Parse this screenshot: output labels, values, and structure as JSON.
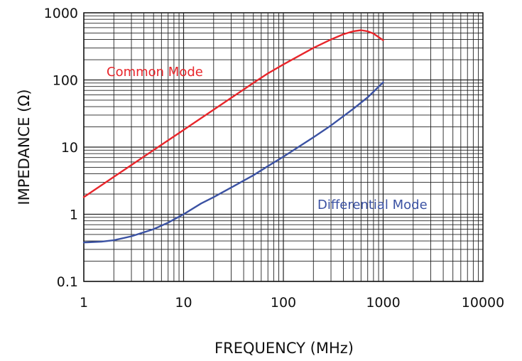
{
  "chart_data": {
    "type": "line",
    "x_scale": "log",
    "y_scale": "log",
    "xlim": [
      1,
      10000
    ],
    "ylim": [
      0.1,
      1000
    ],
    "grid": true,
    "xlabel": "FREQUENCY (MHz)",
    "ylabel": "IMPEDANCE (Ω)",
    "x_tick_labels": [
      "1",
      "10",
      "100",
      "1000",
      "10000"
    ],
    "y_tick_labels": [
      "0.1",
      "1",
      "10",
      "100",
      "1000"
    ],
    "series": [
      {
        "name": "Common Mode",
        "color": "#e8262b",
        "x": [
          1,
          2,
          3,
          5,
          7,
          10,
          20,
          30,
          50,
          70,
          100,
          200,
          300,
          400,
          500,
          600,
          700,
          800,
          1000
        ],
        "y": [
          1.8,
          3.6,
          5.4,
          9,
          12.6,
          18,
          36,
          54,
          90,
          125,
          170,
          300,
          400,
          480,
          530,
          550,
          530,
          490,
          390
        ]
      },
      {
        "name": "Differential Mode",
        "color": "#3b52a3",
        "x": [
          1,
          1.5,
          2,
          3,
          5,
          7,
          10,
          15,
          20,
          30,
          50,
          70,
          100,
          200,
          300,
          500,
          700,
          1000
        ],
        "y": [
          0.38,
          0.39,
          0.41,
          0.47,
          0.6,
          0.75,
          1.0,
          1.45,
          1.8,
          2.5,
          3.8,
          5.2,
          7.2,
          14,
          21,
          37,
          55,
          92
        ]
      }
    ]
  }
}
